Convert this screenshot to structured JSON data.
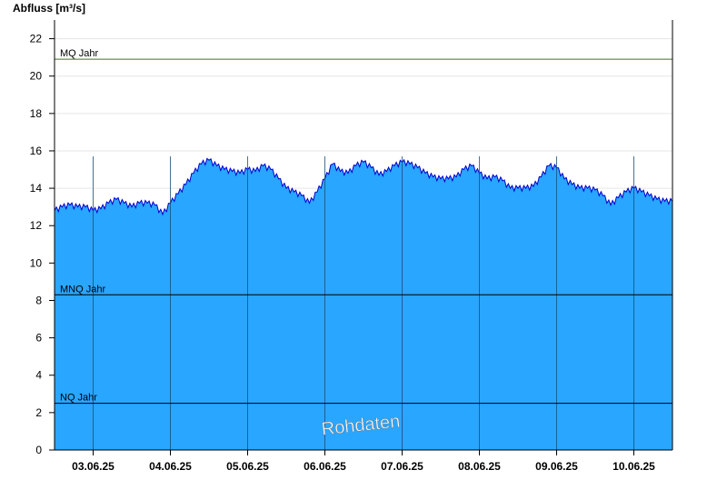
{
  "chart_data": {
    "type": "area",
    "ylabel": "Abfluss [m³/s]",
    "xlabel": "",
    "title": "",
    "ylim": [
      0,
      23
    ],
    "yticks": [
      0,
      2,
      4,
      6,
      8,
      10,
      12,
      14,
      16,
      18,
      20,
      22
    ],
    "grid": true,
    "xlim": [
      2.5,
      10.5
    ],
    "x_tick_labels": [
      "03.06.25",
      "04.06.25",
      "05.06.25",
      "06.06.25",
      "07.06.25",
      "08.06.25",
      "09.06.25",
      "10.06.25"
    ],
    "day_boundaries": [
      3,
      4,
      5,
      6,
      7,
      8,
      9,
      10
    ],
    "series": [
      {
        "values_x": [
          2.5,
          2.6,
          2.7,
          2.8,
          2.9,
          3.0,
          3.1,
          3.2,
          3.3,
          3.4,
          3.5,
          3.6,
          3.7,
          3.8,
          3.9,
          4.0,
          4.1,
          4.2,
          4.3,
          4.4,
          4.5,
          4.6,
          4.7,
          4.8,
          4.9,
          5.0,
          5.1,
          5.2,
          5.3,
          5.4,
          5.5,
          5.6,
          5.7,
          5.8,
          5.9,
          6.0,
          6.1,
          6.2,
          6.3,
          6.4,
          6.5,
          6.6,
          6.7,
          6.8,
          6.9,
          7.0,
          7.1,
          7.2,
          7.3,
          7.4,
          7.5,
          7.6,
          7.7,
          7.8,
          7.9,
          8.0,
          8.1,
          8.2,
          8.3,
          8.4,
          8.5,
          8.6,
          8.7,
          8.8,
          8.9,
          9.0,
          9.1,
          9.2,
          9.3,
          9.4,
          9.5,
          9.6,
          9.7,
          9.8,
          9.9,
          10.0,
          10.1,
          10.2,
          10.3,
          10.4,
          10.5
        ],
        "values": [
          12.8,
          13.0,
          13.1,
          13.0,
          13.0,
          12.8,
          12.9,
          13.2,
          13.4,
          13.2,
          13.0,
          13.2,
          13.2,
          13.1,
          12.6,
          13.2,
          13.7,
          14.2,
          14.8,
          15.3,
          15.5,
          15.2,
          15.0,
          14.9,
          14.8,
          15.0,
          14.9,
          15.2,
          15.0,
          14.5,
          14.0,
          13.8,
          13.6,
          13.2,
          13.8,
          14.5,
          15.3,
          14.9,
          14.8,
          15.2,
          15.4,
          15.1,
          14.7,
          14.9,
          15.2,
          15.4,
          15.3,
          15.1,
          14.8,
          14.6,
          14.5,
          14.5,
          14.6,
          15.0,
          15.2,
          14.8,
          14.5,
          14.6,
          14.4,
          14.0,
          14.0,
          14.0,
          14.1,
          14.6,
          15.2,
          15.1,
          14.5,
          14.2,
          14.0,
          14.0,
          13.9,
          13.6,
          13.1,
          13.5,
          13.8,
          14.0,
          13.8,
          13.6,
          13.4,
          13.3,
          13.3
        ]
      }
    ],
    "reference_lines": [
      {
        "label": "MQ Jahr",
        "value": 20.9,
        "color": "#2d7a2d"
      },
      {
        "label": "MNQ Jahr",
        "value": 8.3,
        "color": "#000000"
      },
      {
        "label": "NQ Jahr",
        "value": 2.5,
        "color": "#000000"
      }
    ],
    "colors": {
      "fill": "#29a6ff",
      "line": "#0000cc",
      "grid": "#e6e6e6",
      "day_line": "#1a4f7a"
    },
    "watermark": "Rohdaten"
  }
}
